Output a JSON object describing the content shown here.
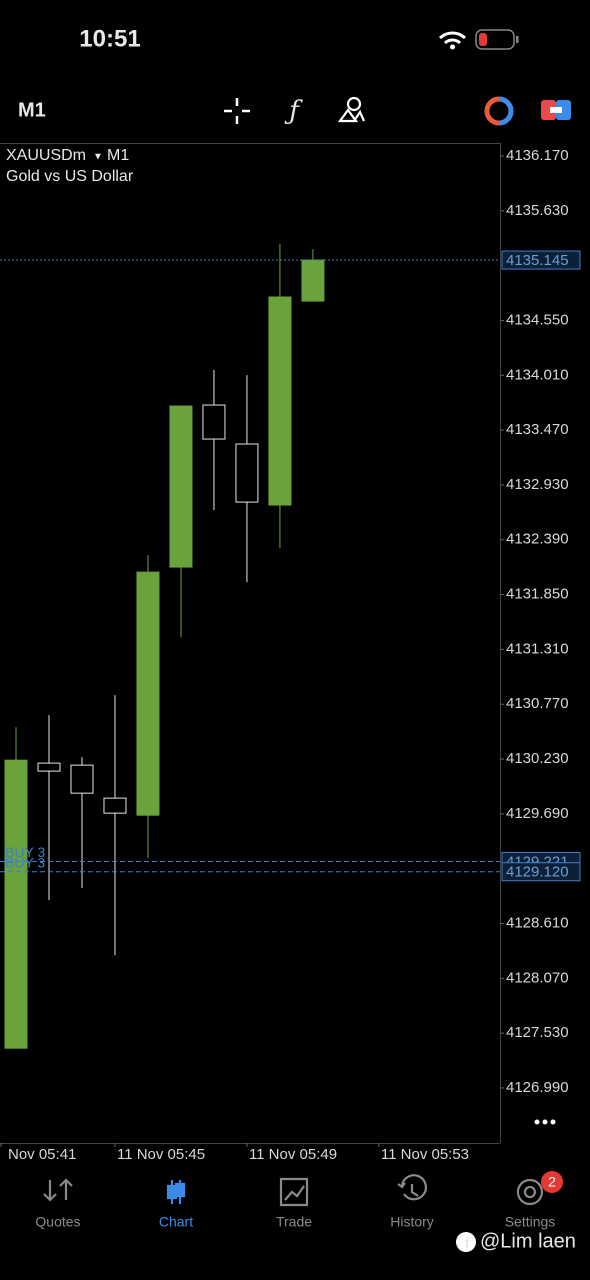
{
  "status_bar": {
    "time": "10:51"
  },
  "toolbar": {
    "timeframe": "M1"
  },
  "chart_data": {
    "type": "candlestick",
    "symbol": "XAUUSDm",
    "timeframe": "M1",
    "subtitle": "Gold vs US Dollar",
    "open": [
      4127.382,
      4130.19,
      4130.17,
      4129.845,
      4129.677,
      4132.121,
      4133.717,
      4133.333,
      4132.732,
      4134.741
    ],
    "high": [
      4130.544,
      4130.663,
      4130.249,
      4130.86,
      4132.239,
      4133.707,
      4134.062,
      4134.012,
      4135.303,
      4135.254
    ],
    "low": [
      4127.382,
      4128.84,
      4128.958,
      4128.298,
      4129.254,
      4131.431,
      4132.682,
      4131.973,
      4132.308,
      4134.741
    ],
    "close": [
      4130.219,
      4130.111,
      4129.894,
      4129.697,
      4132.071,
      4133.707,
      4133.382,
      4132.761,
      4134.781,
      4135.145
    ],
    "up_color": "#6aa33c",
    "down_color": "#e6e6e6",
    "ylim": [
      4126.448,
      4136.298
    ],
    "yticks": [
      {
        "value": 4136.17,
        "label": "4136.170"
      },
      {
        "value": 4135.63,
        "label": "4135.630"
      },
      {
        "value": 4134.55,
        "label": "4134.550"
      },
      {
        "value": 4134.01,
        "label": "4134.010"
      },
      {
        "value": 4133.47,
        "label": "4133.470"
      },
      {
        "value": 4132.93,
        "label": "4132.930"
      },
      {
        "value": 4132.39,
        "label": "4132.390"
      },
      {
        "value": 4131.85,
        "label": "4131.850"
      },
      {
        "value": 4131.31,
        "label": "4131.310"
      },
      {
        "value": 4130.77,
        "label": "4130.770"
      },
      {
        "value": 4130.23,
        "label": "4130.230"
      },
      {
        "value": 4129.69,
        "label": "4129.690"
      },
      {
        "value": 4128.61,
        "label": "4128.610"
      },
      {
        "value": 4128.07,
        "label": "4128.070"
      },
      {
        "value": 4127.53,
        "label": "4127.530"
      },
      {
        "value": 4126.99,
        "label": "4126.990"
      }
    ],
    "xlim": [
      -0.485,
      14.67
    ],
    "xticks": [
      {
        "value": -1,
        "label": "Nov 05:41"
      },
      {
        "value": 3,
        "label": "11 Nov 05:45"
      },
      {
        "value": 7,
        "label": "11 Nov 05:49"
      },
      {
        "value": 11,
        "label": "11 Nov 05:53"
      }
    ],
    "price_lines": [
      {
        "value": 4135.145
      },
      {
        "value": 4129.221,
        "name": "BUY 3"
      },
      {
        "value": 4129.12,
        "label": "4129.120",
        "name": "BUY 3"
      }
    ],
    "line_color": "#3d7fc8"
  },
  "tab_bar": {
    "tabs": [
      "Quotes",
      "Chart",
      "Trade",
      "History",
      "Settings"
    ],
    "active": 1,
    "settings_badge": 2
  },
  "watermark": "@Lim laen"
}
